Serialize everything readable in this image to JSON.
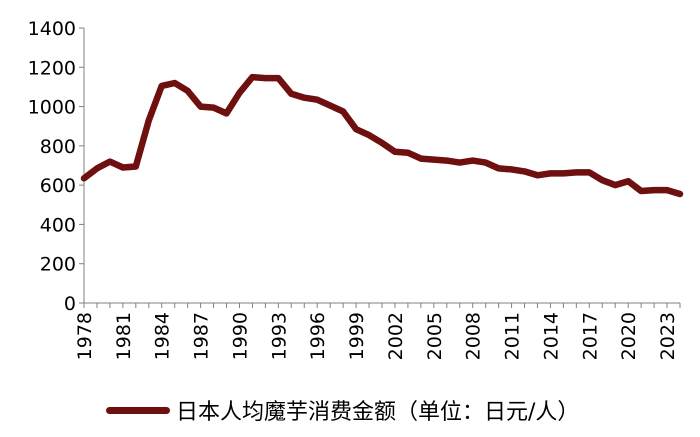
{
  "chart_data": {
    "type": "line",
    "title": "",
    "xlabel": "",
    "ylabel": "",
    "ylim": [
      0,
      1400
    ],
    "yticks": [
      0,
      200,
      400,
      600,
      800,
      1000,
      1200,
      1400
    ],
    "xticks": [
      1978,
      1981,
      1984,
      1987,
      1990,
      1993,
      1996,
      1999,
      2002,
      2005,
      2008,
      2011,
      2014,
      2017,
      2020,
      2023
    ],
    "xlim": [
      1978,
      2024
    ],
    "grid": false,
    "legend_position": "bottom",
    "series": [
      {
        "name": "日本人均魔芋消费金额（单位：日元/人）",
        "color": "#6e0f10",
        "x": [
          1978,
          1979,
          1980,
          1981,
          1982,
          1983,
          1984,
          1985,
          1986,
          1987,
          1988,
          1989,
          1990,
          1991,
          1992,
          1993,
          1994,
          1995,
          1996,
          1997,
          1998,
          1999,
          2000,
          2001,
          2002,
          2003,
          2004,
          2005,
          2006,
          2007,
          2008,
          2009,
          2010,
          2011,
          2012,
          2013,
          2014,
          2015,
          2016,
          2017,
          2018,
          2019,
          2020,
          2021,
          2022,
          2023,
          2024
        ],
        "values": [
          635,
          685,
          720,
          690,
          695,
          930,
          1105,
          1120,
          1080,
          1000,
          995,
          965,
          1070,
          1150,
          1145,
          1145,
          1065,
          1045,
          1035,
          1005,
          975,
          885,
          855,
          815,
          770,
          765,
          735,
          730,
          725,
          715,
          725,
          715,
          685,
          680,
          670,
          650,
          660,
          660,
          665,
          665,
          625,
          600,
          620,
          570,
          575,
          575,
          555
        ]
      }
    ]
  }
}
